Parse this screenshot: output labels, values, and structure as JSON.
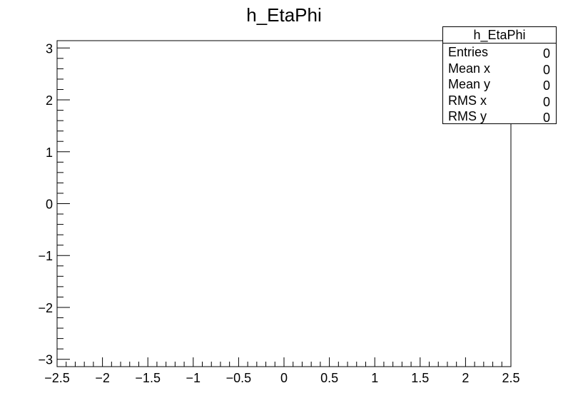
{
  "chart_data": {
    "type": "heatmap",
    "title": "h_EtaPhi",
    "xlabel": "",
    "ylabel": "",
    "xlim": [
      -2.5,
      2.5
    ],
    "ylim": [
      -3.14159,
      3.14159
    ],
    "x_major_ticks": [
      -2.5,
      -2,
      -1.5,
      -1,
      -0.5,
      0,
      0.5,
      1,
      1.5,
      2,
      2.5
    ],
    "x_tick_labels": [
      "−2.5",
      "−2",
      "−1.5",
      "−1",
      "−0.5",
      "0",
      "0.5",
      "1",
      "1.5",
      "2",
      "2.5"
    ],
    "y_major_ticks": [
      -3,
      -2,
      -1,
      0,
      1,
      2,
      3
    ],
    "y_tick_labels": [
      "−3",
      "−2",
      "−1",
      "0",
      "1",
      "2",
      "3"
    ],
    "grid": false,
    "values": [],
    "stats_box": {
      "title": "h_EtaPhi",
      "rows": [
        {
          "label": "Entries",
          "value": "0"
        },
        {
          "label": "Mean x",
          "value": "0"
        },
        {
          "label": "Mean y",
          "value": "0"
        },
        {
          "label": "RMS x",
          "value": "0"
        },
        {
          "label": "RMS y",
          "value": "0"
        }
      ],
      "placement": "top-right"
    }
  }
}
